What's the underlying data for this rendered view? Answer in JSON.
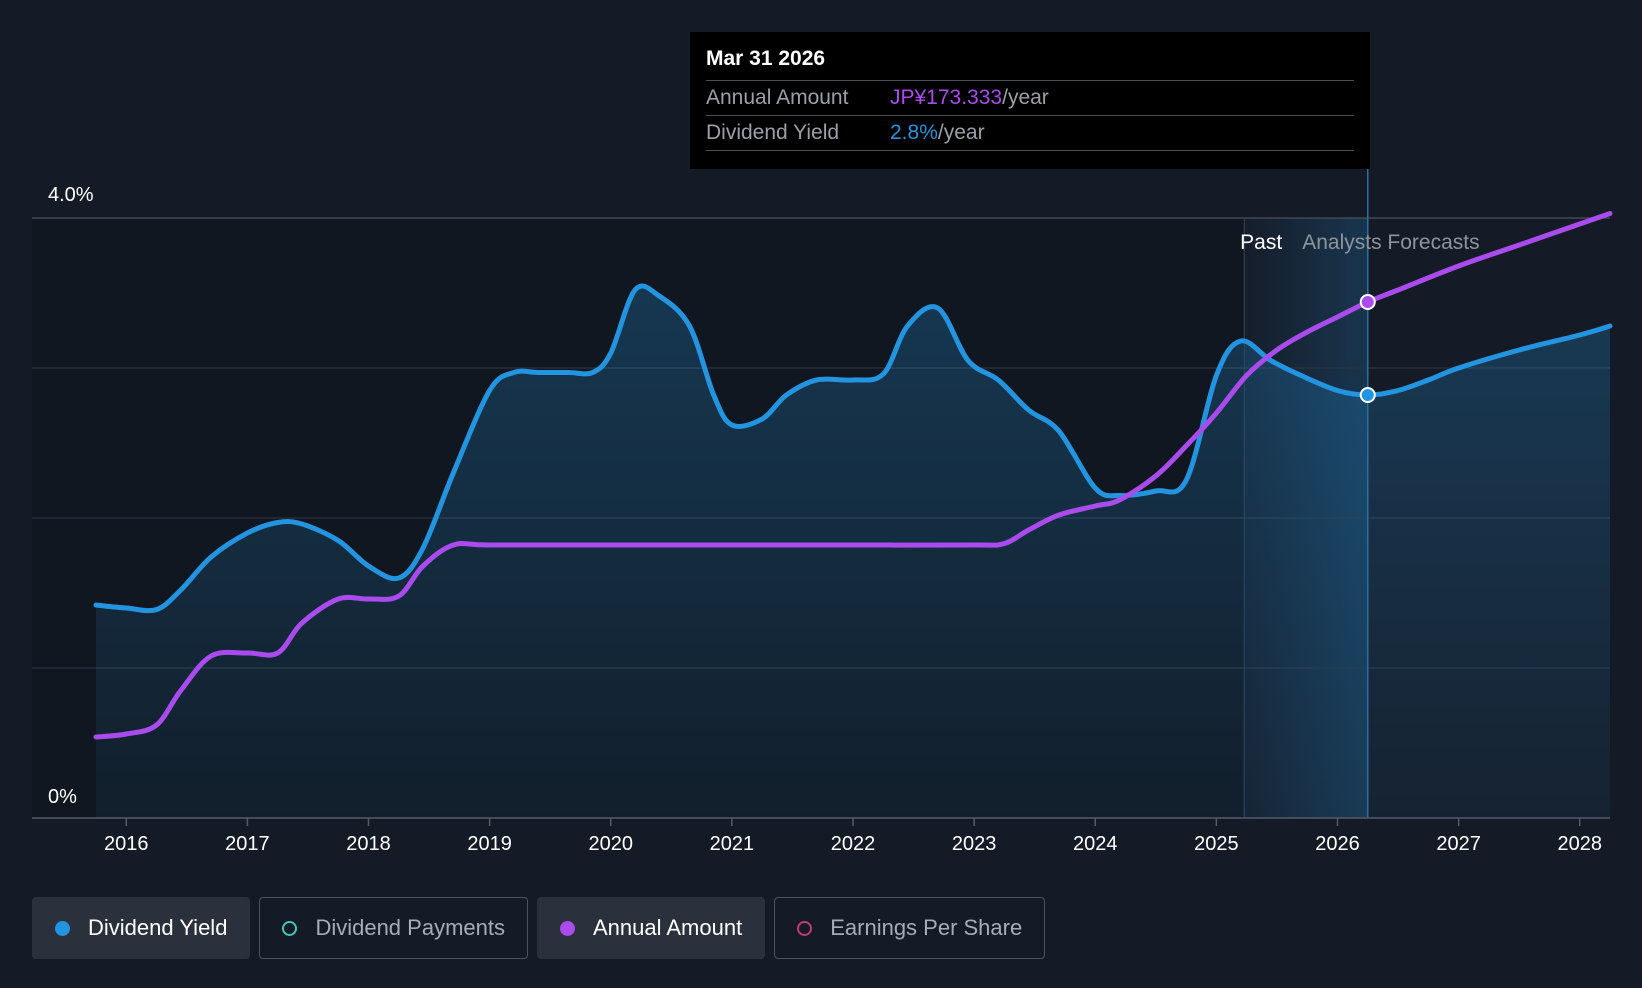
{
  "tooltip": {
    "date": "Mar 31 2026",
    "rows": [
      {
        "label": "Annual Amount",
        "value": "JP¥173.333",
        "unit": "/year",
        "color": "#a94bed"
      },
      {
        "label": "Dividend Yield",
        "value": "2.8%",
        "unit": "/year",
        "color": "#2394df"
      }
    ]
  },
  "legend": [
    {
      "label": "Dividend Yield",
      "color": "#2394df",
      "active": true,
      "icon": "filled-dot-icon"
    },
    {
      "label": "Dividend Payments",
      "color": "#43c6b3",
      "active": false,
      "icon": "hollow-dot-icon"
    },
    {
      "label": "Annual Amount",
      "color": "#a94bed",
      "active": true,
      "icon": "filled-dot-icon"
    },
    {
      "label": "Earnings Per Share",
      "color": "#c33a78",
      "active": false,
      "icon": "hollow-dot-icon"
    }
  ],
  "chart_data": {
    "type": "line",
    "ylim": [
      0,
      4.0
    ],
    "xlim": [
      2015.75,
      2028.25
    ],
    "y_tick_labels": [
      {
        "value": 4.0,
        "label": "4.0%"
      },
      {
        "value": 0,
        "label": "0%"
      }
    ],
    "gridlines": [
      1,
      2,
      3,
      4
    ],
    "x_ticks": [
      2016,
      2017,
      2018,
      2019,
      2020,
      2021,
      2022,
      2023,
      2024,
      2025,
      2026,
      2027,
      2028
    ],
    "x_tick_labels": [
      "2016",
      "2017",
      "2018",
      "2019",
      "2020",
      "2021",
      "2022",
      "2023",
      "2024",
      "2025",
      "2026",
      "2027",
      "2028"
    ],
    "region_labels": {
      "past": "Past",
      "forecast": "Analysts Forecasts"
    },
    "past_boundary_x": 2025.23,
    "highlight_x": 2026.25,
    "series": [
      {
        "name": "Dividend Yield",
        "color": "#2394df",
        "filled": true,
        "x": [
          2015.75,
          2016.0,
          2016.25,
          2016.45,
          2016.7,
          2017.0,
          2017.25,
          2017.45,
          2017.75,
          2018.0,
          2018.25,
          2018.45,
          2018.7,
          2019.0,
          2019.2,
          2019.4,
          2019.65,
          2019.85,
          2020.0,
          2020.2,
          2020.4,
          2020.65,
          2020.85,
          2021.0,
          2021.25,
          2021.45,
          2021.7,
          2022.0,
          2022.25,
          2022.45,
          2022.7,
          2022.95,
          2023.2,
          2023.45,
          2023.7,
          2024.0,
          2024.2,
          2024.5,
          2024.75,
          2025.0,
          2025.2,
          2025.45,
          2025.7,
          2026.0,
          2026.25,
          2026.5,
          2026.75,
          2027.0,
          2027.5,
          2028.0,
          2028.25
        ],
        "y": [
          1.42,
          1.4,
          1.39,
          1.52,
          1.74,
          1.9,
          1.97,
          1.96,
          1.85,
          1.68,
          1.6,
          1.8,
          2.3,
          2.85,
          2.97,
          2.97,
          2.97,
          2.97,
          3.1,
          3.52,
          3.48,
          3.28,
          2.82,
          2.62,
          2.66,
          2.82,
          2.92,
          2.92,
          2.96,
          3.28,
          3.4,
          3.05,
          2.92,
          2.72,
          2.58,
          2.2,
          2.15,
          2.18,
          2.25,
          2.95,
          3.18,
          3.05,
          2.95,
          2.85,
          2.82,
          2.85,
          2.92,
          3.0,
          3.12,
          3.22,
          3.28
        ]
      },
      {
        "name": "Annual Amount",
        "color": "#a94bed",
        "filled": false,
        "x": [
          2015.75,
          2016.0,
          2016.25,
          2016.45,
          2016.7,
          2017.0,
          2017.25,
          2017.45,
          2017.75,
          2018.0,
          2018.25,
          2018.45,
          2018.7,
          2019.0,
          2020.0,
          2021.0,
          2022.0,
          2023.0,
          2023.25,
          2023.45,
          2023.7,
          2024.0,
          2024.2,
          2024.5,
          2024.75,
          2025.0,
          2025.25,
          2025.5,
          2025.75,
          2026.0,
          2026.25,
          2026.5,
          2027.0,
          2027.5,
          2028.0,
          2028.25
        ],
        "y": [
          0.54,
          0.56,
          0.62,
          0.85,
          1.08,
          1.1,
          1.1,
          1.3,
          1.46,
          1.46,
          1.48,
          1.68,
          1.82,
          1.82,
          1.82,
          1.82,
          1.82,
          1.82,
          1.83,
          1.92,
          2.02,
          2.08,
          2.12,
          2.28,
          2.48,
          2.7,
          2.95,
          3.12,
          3.24,
          3.34,
          3.44,
          3.52,
          3.68,
          3.82,
          3.96,
          4.03
        ]
      }
    ],
    "highlight_points": [
      {
        "series": "Annual Amount",
        "x": 2026.25,
        "y": 3.44
      },
      {
        "series": "Dividend Yield",
        "x": 2026.25,
        "y": 2.82
      }
    ]
  }
}
